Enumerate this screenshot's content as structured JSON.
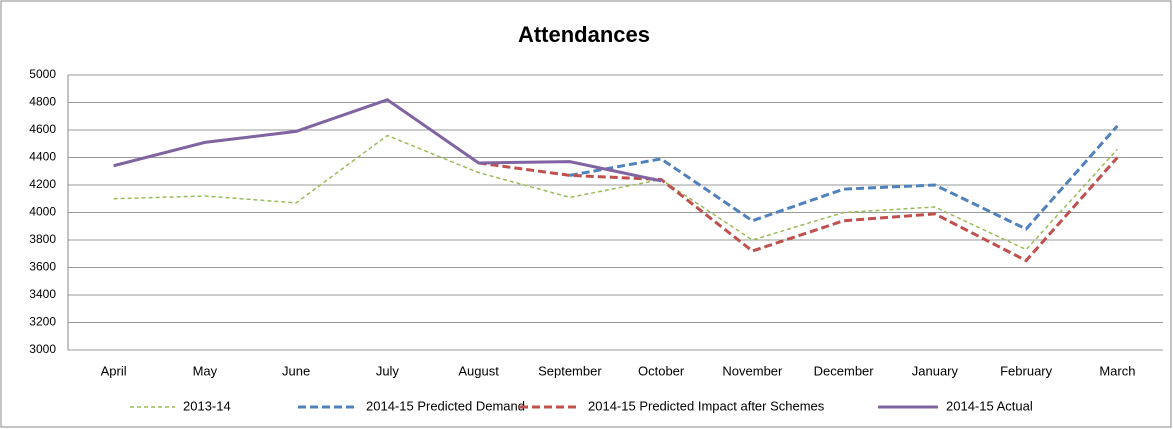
{
  "chart_data": {
    "type": "line",
    "title": "Attendances",
    "categories": [
      "April",
      "May",
      "June",
      "July",
      "August",
      "September",
      "October",
      "November",
      "December",
      "January",
      "February",
      "March"
    ],
    "series": [
      {
        "name": "2013-14",
        "color": "#9bbb59",
        "dash": "4,3",
        "width": 1.5,
        "values": [
          4100,
          4120,
          4070,
          4560,
          4290,
          4110,
          4240,
          3800,
          4000,
          4040,
          3730,
          4460
        ]
      },
      {
        "name": "2014-15 Predicted Demand",
        "color": "#4f81bd",
        "dash": "8,4",
        "width": 3,
        "values": [
          null,
          null,
          null,
          null,
          null,
          4270,
          4390,
          3940,
          4170,
          4200,
          3880,
          4630
        ]
      },
      {
        "name": "2014-15 Predicted Impact after Schemes",
        "color": "#c0504d",
        "dash": "8,4",
        "width": 3,
        "values": [
          null,
          null,
          null,
          null,
          4360,
          4270,
          4240,
          3720,
          3940,
          3990,
          3650,
          4400
        ]
      },
      {
        "name": "2014-15 Actual",
        "color": "#8064a2",
        "dash": "",
        "width": 3,
        "values": [
          4340,
          4510,
          4590,
          4820,
          4360,
          4370,
          4230,
          null,
          null,
          null,
          null,
          null
        ]
      }
    ],
    "ylim": [
      3000,
      5000
    ],
    "yticks": [
      3000,
      3200,
      3400,
      3600,
      3800,
      4000,
      4200,
      4400,
      4600,
      4800,
      5000
    ],
    "grid": true,
    "legend": "bottom"
  }
}
